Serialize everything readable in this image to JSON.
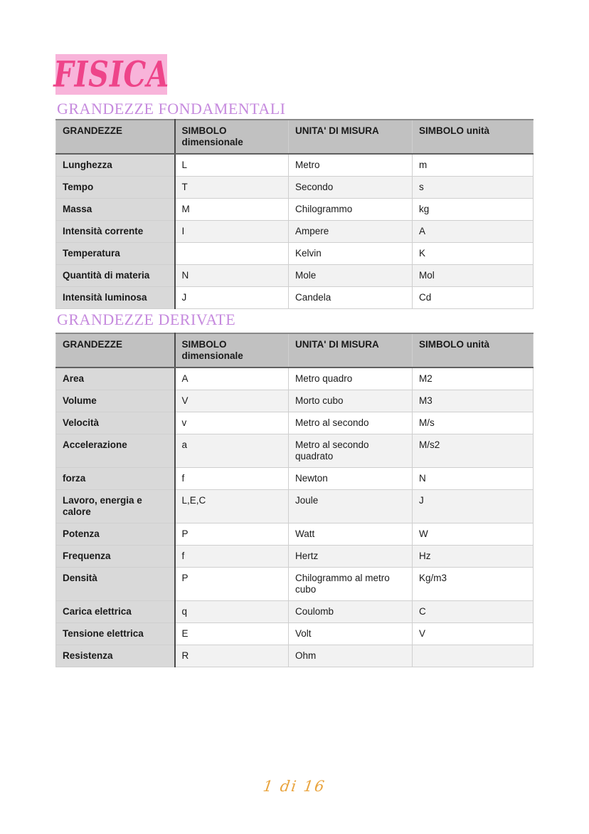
{
  "page": {
    "title": "FISICA",
    "footer": {
      "page_indicator": "1 di 16"
    },
    "colors": {
      "title_text": "#ee4489",
      "title_highlight": "#f8b4da",
      "section_heading": "#c68ade",
      "footer_text": "#e9a43e",
      "table_header_bg": "#c1c1c1",
      "table_label_column_bg": "#d9d9d9",
      "table_alt_row_bg": "#f2f2f2"
    }
  },
  "sections": [
    {
      "heading": "GRANDEZZE FONDAMENTALI",
      "table": {
        "columns": [
          "GRANDEZZE",
          "SIMBOLO dimensionale",
          "UNITA' DI MISURA",
          "SIMBOLO unità"
        ],
        "rows": [
          [
            "Lunghezza",
            "L",
            "Metro",
            "m"
          ],
          [
            "Tempo",
            "T",
            "Secondo",
            "s"
          ],
          [
            "Massa",
            "M",
            "Chilogrammo",
            "kg"
          ],
          [
            "Intensità corrente",
            "I",
            "Ampere",
            "A"
          ],
          [
            "Temperatura",
            "",
            "Kelvin",
            "K"
          ],
          [
            "Quantità di materia",
            "N",
            "Mole",
            "Mol"
          ],
          [
            "Intensità luminosa",
            "J",
            "Candela",
            "Cd"
          ]
        ]
      }
    },
    {
      "heading": "GRANDEZZE DERIVATE",
      "table": {
        "columns": [
          "GRANDEZZE",
          "SIMBOLO dimensionale",
          "UNITA' DI MISURA",
          "SIMBOLO unità"
        ],
        "rows": [
          [
            "Area",
            "A",
            "Metro quadro",
            "M2"
          ],
          [
            "Volume",
            "V",
            "Morto cubo",
            "M3"
          ],
          [
            "Velocità",
            "v",
            "Metro al secondo",
            "M/s"
          ],
          [
            "Accelerazione",
            "a",
            "Metro al secondo quadrato",
            "M/s2"
          ],
          [
            "forza",
            "f",
            "Newton",
            "N"
          ],
          [
            "Lavoro, energia e calore",
            "L,E,C",
            "Joule",
            "J"
          ],
          [
            "Potenza",
            "P",
            "Watt",
            "W"
          ],
          [
            "Frequenza",
            "f",
            "Hertz",
            "Hz"
          ],
          [
            "Densità",
            "P",
            "Chilogrammo al metro cubo",
            "Kg/m3"
          ],
          [
            "Carica elettrica",
            "q",
            "Coulomb",
            "C"
          ],
          [
            "Tensione elettrica",
            "E",
            "Volt",
            "V"
          ],
          [
            "Resistenza",
            "R",
            "Ohm",
            ""
          ]
        ]
      }
    }
  ]
}
